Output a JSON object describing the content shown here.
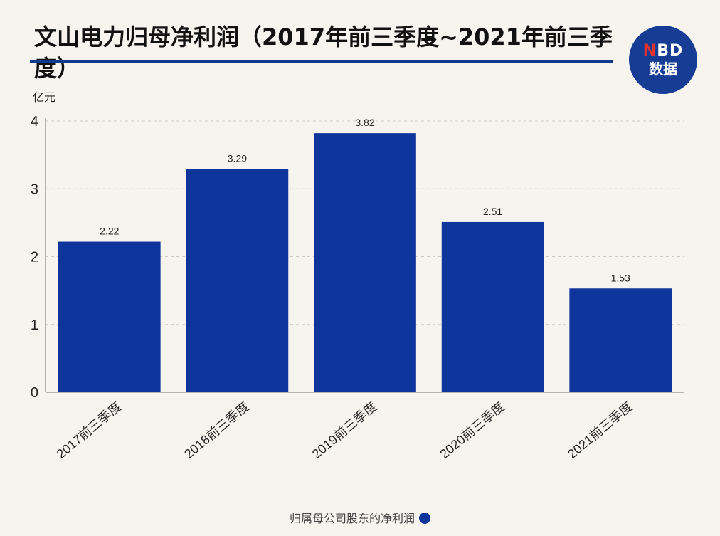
{
  "brand": {
    "logo_line1_n": "N",
    "logo_line1_rest": "BD",
    "logo_line2": "数据"
  },
  "chart_data": {
    "type": "bar",
    "title": "文山电力归母净利润（2017年前三季度~2021年前三季度）",
    "ylabel": "亿元",
    "xlabel": "",
    "categories": [
      "2017前三季度",
      "2018前三季度",
      "2019前三季度",
      "2020前三季度",
      "2021前三季度"
    ],
    "series": [
      {
        "name": "归属母公司股东的净利润",
        "values": [
          2.22,
          3.29,
          3.82,
          2.51,
          1.53
        ],
        "color": "#0e359b"
      }
    ],
    "data_labels": [
      "2.22",
      "3.29",
      "3.82",
      "2.51",
      "1.53"
    ],
    "ylim": [
      0,
      4
    ],
    "yticks": [
      "0",
      "1",
      "2",
      "3",
      "4"
    ],
    "grid": true,
    "legend": "bottom-center"
  }
}
